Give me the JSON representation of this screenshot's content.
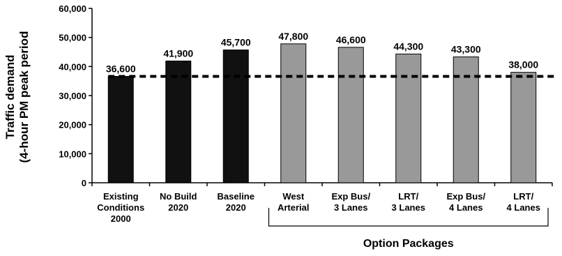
{
  "chart_data": {
    "type": "bar",
    "ylabel": [
      "Traffic demand",
      "(4-hour PM peak period"
    ],
    "xlabel": "",
    "ylim": [
      0,
      60000
    ],
    "yticks": [
      0,
      10000,
      20000,
      30000,
      40000,
      50000,
      60000
    ],
    "ytick_labels": [
      "0",
      "10,000",
      "20,000",
      "30,000",
      "40,000",
      "50,000",
      "60,000"
    ],
    "grid": false,
    "legend": "none",
    "reference_line": {
      "value": 36600,
      "style": "dashed"
    },
    "categories": [
      [
        "Existing",
        "Conditions",
        "2000"
      ],
      [
        "No Build",
        "2020"
      ],
      [
        "Baseline",
        "2020"
      ],
      [
        "West",
        "Arterial"
      ],
      [
        "Exp Bus/",
        "3 Lanes"
      ],
      [
        "LRT/",
        "3 Lanes"
      ],
      [
        "Exp Bus/",
        "4 Lanes"
      ],
      [
        "LRT/",
        "4 Lanes"
      ]
    ],
    "values": [
      36600,
      41900,
      45700,
      47800,
      46600,
      44300,
      43300,
      38000
    ],
    "data_labels": [
      "36,600",
      "41,900",
      "45,700",
      "47,800",
      "46,600",
      "44,300",
      "43,300",
      "38,000"
    ],
    "bar_colors": [
      "#111111",
      "#111111",
      "#111111",
      "#999999",
      "#999999",
      "#999999",
      "#999999",
      "#999999"
    ],
    "group": {
      "label": "Option Packages",
      "from_index": 3,
      "to_index": 7
    }
  }
}
